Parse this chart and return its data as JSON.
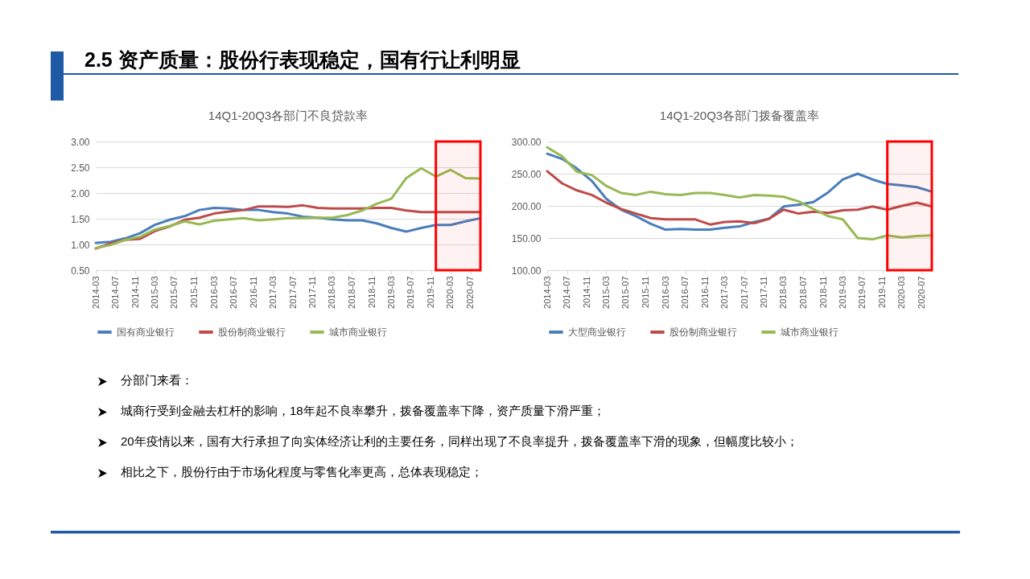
{
  "chart_data": [
    {
      "type": "other",
      "title": "2.5 资产质量：股份行表现稳定，国有行让利明显"
    },
    {
      "type": "line",
      "title": "14Q1-20Q3各部门不良贷款率",
      "x": [
        "2014-03",
        "2014-06",
        "2014-09",
        "2014-12",
        "2015-03",
        "2015-06",
        "2015-09",
        "2015-12",
        "2016-03",
        "2016-06",
        "2016-09",
        "2016-12",
        "2017-03",
        "2017-06",
        "2017-09",
        "2017-12",
        "2018-03",
        "2018-06",
        "2018-09",
        "2018-12",
        "2019-03",
        "2019-06",
        "2019-09",
        "2019-12",
        "2020-03",
        "2020-06",
        "2020-09"
      ],
      "series": [
        {
          "name": "国有商业银行",
          "color": "#4a7ebb",
          "values": [
            1.03,
            1.05,
            1.12,
            1.22,
            1.38,
            1.48,
            1.55,
            1.67,
            1.71,
            1.7,
            1.67,
            1.67,
            1.63,
            1.6,
            1.54,
            1.52,
            1.49,
            1.47,
            1.47,
            1.41,
            1.32,
            1.25,
            1.32,
            1.38,
            1.38,
            1.45,
            1.51
          ]
        },
        {
          "name": "股份制商业银行",
          "color": "#be4b48",
          "values": [
            0.92,
            1.02,
            1.09,
            1.11,
            1.26,
            1.35,
            1.48,
            1.52,
            1.6,
            1.64,
            1.67,
            1.74,
            1.74,
            1.73,
            1.76,
            1.71,
            1.7,
            1.7,
            1.7,
            1.71,
            1.71,
            1.66,
            1.63,
            1.63,
            1.63,
            1.63,
            1.63
          ]
        },
        {
          "name": "城市商业银行",
          "color": "#98b954",
          "values": [
            0.93,
            0.99,
            1.09,
            1.15,
            1.29,
            1.36,
            1.45,
            1.39,
            1.46,
            1.49,
            1.51,
            1.47,
            1.49,
            1.51,
            1.51,
            1.52,
            1.52,
            1.57,
            1.66,
            1.79,
            1.89,
            2.29,
            2.48,
            2.32,
            2.45,
            2.29,
            2.28
          ]
        }
      ],
      "xlim": [
        "2014-03",
        "2020-09"
      ],
      "xticks": [
        "2014-03",
        "2014-07",
        "2014-11",
        "2015-03",
        "2015-07",
        "2015-11",
        "2016-03",
        "2016-07",
        "2016-11",
        "2017-03",
        "2017-07",
        "2017-11",
        "2018-03",
        "2018-07",
        "2018-11",
        "2019-03",
        "2019-07",
        "2019-11",
        "2020-03",
        "2020-07"
      ],
      "ylim": [
        0.5,
        3
      ],
      "yticks": [
        {
          "value": 0.5,
          "label": "0.50"
        },
        {
          "value": 1,
          "label": "1.00"
        },
        {
          "value": 1.5,
          "label": "1.50"
        },
        {
          "value": 2,
          "label": "2.00"
        },
        {
          "value": 2.5,
          "label": "2.50"
        },
        {
          "value": 3,
          "label": "3.00"
        }
      ],
      "grid": "y",
      "legend": "bottom",
      "bands": [
        {
          "axis": "x",
          "from": "2019-12",
          "to": "2020-09",
          "color": "#ff0000"
        }
      ]
    },
    {
      "type": "line",
      "title": "14Q1-20Q3各部门拨备覆盖率",
      "x": [
        "2014-03",
        "2014-06",
        "2014-09",
        "2014-12",
        "2015-03",
        "2015-06",
        "2015-09",
        "2015-12",
        "2016-03",
        "2016-06",
        "2016-09",
        "2016-12",
        "2017-03",
        "2017-06",
        "2017-09",
        "2017-12",
        "2018-03",
        "2018-06",
        "2018-09",
        "2018-12",
        "2019-03",
        "2019-06",
        "2019-09",
        "2019-12",
        "2020-03",
        "2020-06",
        "2020-09"
      ],
      "series": [
        {
          "name": "大型商业银行",
          "color": "#4a7ebb",
          "values": [
            281,
            273,
            258,
            239,
            211,
            194,
            184,
            172,
            163,
            164,
            163,
            163,
            166,
            168,
            175,
            180,
            199,
            202,
            206,
            221,
            241,
            250,
            241,
            234,
            232,
            229,
            222
          ]
        },
        {
          "name": "股份制商业银行",
          "color": "#be4b48",
          "values": [
            254,
            235,
            224,
            217,
            205,
            195,
            188,
            181,
            179,
            179,
            179,
            171,
            175,
            176,
            173,
            180,
            194,
            188,
            191,
            189,
            193,
            194,
            199,
            194,
            200,
            205,
            199
          ]
        },
        {
          "name": "城市商业银行",
          "color": "#98b954",
          "values": [
            291,
            277,
            253,
            248,
            231,
            220,
            217,
            222,
            218,
            217,
            220,
            220,
            217,
            213,
            217,
            216,
            214,
            207,
            195,
            184,
            179,
            150,
            148,
            154,
            151,
            153,
            154
          ]
        }
      ],
      "xlim": [
        "2014-03",
        "2020-09"
      ],
      "xticks": [
        "2014-03",
        "2014-07",
        "2014-11",
        "2015-03",
        "2015-07",
        "2015-11",
        "2016-03",
        "2016-07",
        "2016-11",
        "2017-03",
        "2017-07",
        "2017-11",
        "2018-03",
        "2018-07",
        "2018-11",
        "2019-03",
        "2019-07",
        "2019-11",
        "2020-03",
        "2020-07"
      ],
      "ylim": [
        100,
        300
      ],
      "yticks": [
        {
          "value": 100,
          "label": "100.00"
        },
        {
          "value": 150,
          "label": "150.00"
        },
        {
          "value": 200,
          "label": "200.00"
        },
        {
          "value": 250,
          "label": "250.00"
        },
        {
          "value": 300,
          "label": "300.00"
        }
      ],
      "grid": "y",
      "legend": "bottom",
      "bands": [
        {
          "axis": "x",
          "from": "2019-12",
          "to": "2020-09",
          "color": "#ff0000"
        }
      ]
    },
    {
      "type": "other",
      "annotations": [
        "分部门来看：",
        "城商行受到金融去杠杆的影响，18年起不良率攀升，拨备覆盖率下降，资产质量下滑严重；",
        "20年疫情以来，国有大行承担了向实体经济让利的主要任务，同样出现了不良率提升，拨备覆盖率下滑的现象，但幅度比较小；",
        "相比之下，股份行由于市场化程度与零售化率更高，总体表现稳定；"
      ]
    }
  ]
}
